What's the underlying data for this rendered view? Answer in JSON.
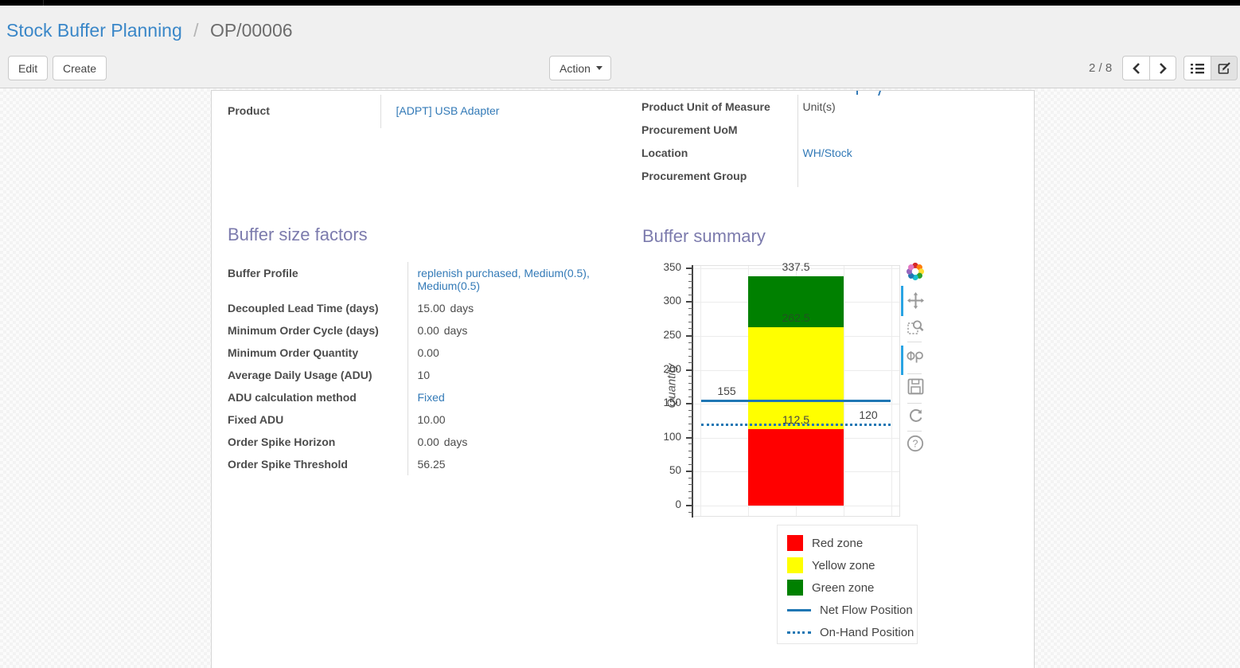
{
  "breadcrumb": {
    "parent": "Stock Buffer Planning",
    "separator": "/",
    "current": "OP/00006"
  },
  "control_panel": {
    "edit_label": "Edit",
    "create_label": "Create",
    "action_label": "Action",
    "pager": "2 / 8"
  },
  "form": {
    "left_fields": [
      {
        "label": "Product",
        "value": "[ADPT] USB Adapter"
      }
    ],
    "right_fields": [
      {
        "label": "Product Unit of Measure",
        "value": "Unit(s)"
      },
      {
        "label": "Procurement UoM",
        "value": ""
      },
      {
        "label": "Location",
        "value": "WH/Stock"
      },
      {
        "label": "Procurement Group",
        "value": ""
      }
    ],
    "sections": {
      "factors_title": "Buffer size factors",
      "summary_title": "Buffer summary"
    },
    "factors": [
      {
        "label": "Buffer Profile",
        "value": "replenish purchased, Medium(0.5), Medium(0.5)"
      },
      {
        "label": "Decoupled Lead Time (days)",
        "value": "15.00",
        "suffix": "days"
      },
      {
        "label": "Minimum Order Cycle (days)",
        "value": "0.00",
        "suffix": "days"
      },
      {
        "label": "Minimum Order Quantity",
        "value": "0.00"
      },
      {
        "label": "Average Daily Usage (ADU)",
        "value": "10"
      },
      {
        "label": "ADU calculation method",
        "value": "Fixed"
      },
      {
        "label": "Fixed ADU",
        "value": "10.00"
      },
      {
        "label": "Order Spike Horizon",
        "value": "0.00",
        "suffix": "days"
      },
      {
        "label": "Order Spike Threshold",
        "value": "56.25"
      }
    ]
  },
  "chart_data": {
    "type": "bar",
    "title": "Buffer summary",
    "xlabel": "",
    "ylabel": "Quantity",
    "ylim": [
      -17,
      353
    ],
    "yticks": [
      0,
      50,
      100,
      150,
      200,
      250,
      300,
      350
    ],
    "grid": true,
    "legend_position": "bottom-outside",
    "series": [
      {
        "name": "Red zone",
        "kind": "bar",
        "color": "#ff0000",
        "from": 0,
        "to": 112.5,
        "label": "112.5"
      },
      {
        "name": "Yellow zone",
        "kind": "bar",
        "color": "#ffff00",
        "from": 112.5,
        "to": 262.5,
        "label": "262.5"
      },
      {
        "name": "Green zone",
        "kind": "bar",
        "color": "#008000",
        "from": 262.5,
        "to": 337.5,
        "label": "337.5"
      },
      {
        "name": "Net Flow Position",
        "kind": "hline",
        "style": "solid",
        "color": "#1f77b4",
        "value": 155,
        "label": "155"
      },
      {
        "name": "On-Hand Position",
        "kind": "hline",
        "style": "dotted",
        "color": "#1f77b4",
        "value": 120,
        "label": "120"
      }
    ]
  }
}
